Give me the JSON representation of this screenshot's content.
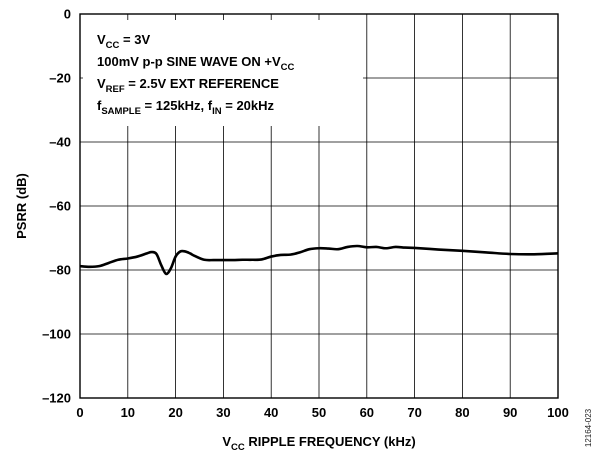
{
  "chart_data": {
    "type": "line",
    "title": "",
    "xlabel": {
      "main": "V",
      "sub": "CC",
      "rest": " RIPPLE FREQUENCY (kHz)"
    },
    "ylabel": "PSRR (dB)",
    "xlim": [
      0,
      100
    ],
    "ylim": [
      -120,
      0
    ],
    "xticks": [
      0,
      10,
      20,
      30,
      40,
      50,
      60,
      70,
      80,
      90,
      100
    ],
    "yticks": [
      0,
      -20,
      -40,
      -60,
      -80,
      -100,
      -120
    ],
    "ytick_labels": [
      "0",
      "–20",
      "–40",
      "–60",
      "–80",
      "–100",
      "–120"
    ],
    "grid": true,
    "annotations": [
      [
        {
          "t": "V"
        },
        {
          "t": "CC",
          "sub": true
        },
        {
          "t": " = 3V"
        }
      ],
      [
        {
          "t": "100mV p-p SINE WAVE ON +V"
        },
        {
          "t": "CC",
          "sub": true
        }
      ],
      [
        {
          "t": "V"
        },
        {
          "t": "REF",
          "sub": true
        },
        {
          "t": " = 2.5V EXT REFERENCE"
        }
      ],
      [
        {
          "t": "f"
        },
        {
          "t": "SAMPLE",
          "sub": true
        },
        {
          "t": " = 125kHz, f"
        },
        {
          "t": "IN",
          "sub": true
        },
        {
          "t": " = 20kHz"
        }
      ]
    ],
    "figure_id": "12164-023",
    "series": [
      {
        "x": [
          0,
          2,
          4,
          6,
          8,
          10,
          12,
          14,
          15,
          16,
          17,
          18,
          19,
          20,
          21,
          22,
          23,
          24,
          26,
          28,
          30,
          32,
          34,
          36,
          38,
          40,
          42,
          44,
          46,
          48,
          50,
          52,
          54,
          56,
          58,
          60,
          62,
          64,
          66,
          68,
          70,
          75,
          80,
          85,
          90,
          95,
          100
        ],
        "y": [
          -78.8,
          -79,
          -78.8,
          -77.8,
          -76.8,
          -76.4,
          -75.8,
          -74.8,
          -74.4,
          -75,
          -78.5,
          -81.2,
          -79.5,
          -75.8,
          -74.2,
          -74.2,
          -74.8,
          -75.6,
          -76.8,
          -76.9,
          -76.9,
          -76.9,
          -76.8,
          -76.8,
          -76.7,
          -75.8,
          -75.3,
          -75.2,
          -74.5,
          -73.5,
          -73.2,
          -73.3,
          -73.5,
          -72.8,
          -72.5,
          -72.9,
          -72.8,
          -73.2,
          -72.8,
          -73.0,
          -73.1,
          -73.6,
          -74.0,
          -74.5,
          -75.0,
          -75.1,
          -74.8
        ]
      }
    ]
  }
}
